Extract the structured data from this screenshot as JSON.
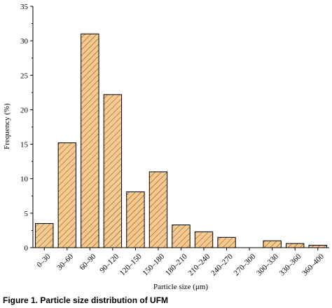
{
  "caption": "Figure 1. Particle size distribution of UFM",
  "chart_data": {
    "type": "bar",
    "title": "",
    "xlabel": "Particle size (μm)",
    "ylabel": "Frequency (%)",
    "ylim": [
      0,
      35
    ],
    "yticks": [
      0,
      5,
      10,
      15,
      20,
      25,
      30,
      35
    ],
    "categories": [
      "0–30",
      "30–60",
      "60–90",
      "90–120",
      "120–150",
      "150–180",
      "180–210",
      "210–240",
      "240–270",
      "270–300",
      "300–330",
      "330–360",
      "360–400"
    ],
    "values": [
      3.5,
      15.2,
      31.0,
      22.2,
      8.1,
      11.0,
      3.3,
      2.3,
      1.5,
      0,
      1.0,
      0.6,
      0.35
    ],
    "bar_fill": "#f7c98f",
    "bar_hatch": "#6b4a20",
    "bar_edge": "#000000",
    "grid": false
  }
}
